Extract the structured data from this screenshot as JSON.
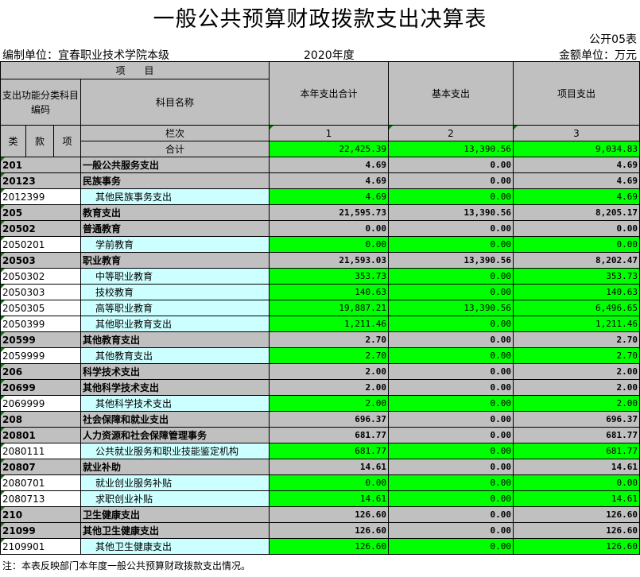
{
  "title": "一般公共预算财政拨款支出决算表",
  "form_no": "公开05表",
  "unit_label": "编制单位：宜春职业技术学院本级",
  "year": "2020年度",
  "currency_unit": "金额单位：万元",
  "header": {
    "item": "项　　目",
    "code": "支出功能分类科目编码",
    "name": "科目名称",
    "lei": "类",
    "kuan": "款",
    "xiang": "项",
    "lanci": "栏次",
    "cols": [
      "本年支出合计",
      "基本支出",
      "项目支出"
    ],
    "col_nums": [
      "1",
      "2",
      "3"
    ]
  },
  "total": {
    "label": "合计",
    "values": [
      "22,425.39",
      "13,390.56",
      "9,034.83"
    ]
  },
  "rows": [
    {
      "code": "201",
      "name": "一般公共服务支出",
      "level": "sum",
      "values": [
        "4.69",
        "0.00",
        "4.69"
      ]
    },
    {
      "code": "20123",
      "name": "民族事务",
      "level": "sum",
      "values": [
        "4.69",
        "0.00",
        "4.69"
      ]
    },
    {
      "code": "2012399",
      "name": "其他民族事务支出",
      "level": "detail",
      "values": [
        "4.69",
        "0.00",
        "4.69"
      ]
    },
    {
      "code": "205",
      "name": "教育支出",
      "level": "sum",
      "values": [
        "21,595.73",
        "13,390.56",
        "8,205.17"
      ]
    },
    {
      "code": "20502",
      "name": "普通教育",
      "level": "sum",
      "values": [
        "0.00",
        "0.00",
        "0.00"
      ]
    },
    {
      "code": "2050201",
      "name": "学前教育",
      "level": "detail",
      "values": [
        "0.00",
        "0.00",
        "0.00"
      ]
    },
    {
      "code": "20503",
      "name": "职业教育",
      "level": "sum",
      "values": [
        "21,593.03",
        "13,390.56",
        "8,202.47"
      ]
    },
    {
      "code": "2050302",
      "name": "中等职业教育",
      "level": "detail",
      "values": [
        "353.73",
        "0.00",
        "353.73"
      ]
    },
    {
      "code": "2050303",
      "name": "技校教育",
      "level": "detail",
      "values": [
        "140.63",
        "0.00",
        "140.63"
      ]
    },
    {
      "code": "2050305",
      "name": "高等职业教育",
      "level": "detail",
      "values": [
        "19,887.21",
        "13,390.56",
        "6,496.65"
      ]
    },
    {
      "code": "2050399",
      "name": "其他职业教育支出",
      "level": "detail",
      "values": [
        "1,211.46",
        "0.00",
        "1,211.46"
      ]
    },
    {
      "code": "20599",
      "name": "其他教育支出",
      "level": "sum",
      "values": [
        "2.70",
        "0.00",
        "2.70"
      ]
    },
    {
      "code": "2059999",
      "name": "其他教育支出",
      "level": "detail",
      "values": [
        "2.70",
        "0.00",
        "2.70"
      ]
    },
    {
      "code": "206",
      "name": "科学技术支出",
      "level": "sum",
      "values": [
        "2.00",
        "0.00",
        "2.00"
      ]
    },
    {
      "code": "20699",
      "name": "其他科学技术支出",
      "level": "sum",
      "values": [
        "2.00",
        "0.00",
        "2.00"
      ]
    },
    {
      "code": "2069999",
      "name": "其他科学技术支出",
      "level": "detail",
      "values": [
        "2.00",
        "0.00",
        "2.00"
      ]
    },
    {
      "code": "208",
      "name": "社会保障和就业支出",
      "level": "sum",
      "values": [
        "696.37",
        "0.00",
        "696.37"
      ]
    },
    {
      "code": "20801",
      "name": "人力资源和社会保障管理事务",
      "level": "sum",
      "values": [
        "681.77",
        "0.00",
        "681.77"
      ]
    },
    {
      "code": "2080111",
      "name": "公共就业服务和职业技能鉴定机构",
      "level": "detail",
      "values": [
        "681.77",
        "0.00",
        "681.77"
      ]
    },
    {
      "code": "20807",
      "name": "就业补助",
      "level": "sum",
      "values": [
        "14.61",
        "0.00",
        "14.61"
      ]
    },
    {
      "code": "2080701",
      "name": "就业创业服务补贴",
      "level": "detail",
      "values": [
        "0.00",
        "0.00",
        "0.00"
      ]
    },
    {
      "code": "2080713",
      "name": "求职创业补贴",
      "level": "detail",
      "values": [
        "14.61",
        "0.00",
        "14.61"
      ]
    },
    {
      "code": "210",
      "name": "卫生健康支出",
      "level": "sum",
      "values": [
        "126.60",
        "0.00",
        "126.60"
      ]
    },
    {
      "code": "21099",
      "name": "其他卫生健康支出",
      "level": "sum",
      "values": [
        "126.60",
        "0.00",
        "126.60"
      ]
    },
    {
      "code": "2109901",
      "name": "其他卫生健康支出",
      "level": "detail",
      "values": [
        "126.60",
        "0.00",
        "126.60"
      ]
    }
  ],
  "note": "注：本表反映部门本年度一般公共预算财政拨款支出情况。",
  "colors": {
    "header": "#c0c0c0",
    "input": "#00ff00",
    "detail_name": "#ccffff"
  }
}
